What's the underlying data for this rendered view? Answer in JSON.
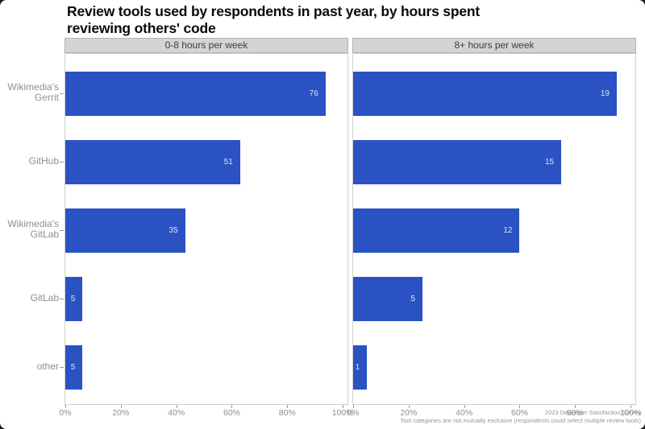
{
  "title_lines": [
    "Review tools used by respondents in past year, by hours spent",
    "reviewing others' code"
  ],
  "footnote": {
    "line1": "2023 Developer Satisfaction Survey",
    "line2": "Tool categories are not mutually exclusive (respondents could select multiple review tools)"
  },
  "colors": {
    "bar": "#2a52c3",
    "strip_bg": "#d4d4d4",
    "strip_border": "#b3b3b3",
    "panel_border": "#cfcfcf",
    "axis_text": "#8f8f8f",
    "footnote_text": "#969696"
  },
  "chart_data": {
    "type": "bar",
    "orientation": "horizontal",
    "title": "Review tools used by respondents in past year, by hours spent reviewing others' code",
    "categories": [
      "Wikimedia's Gerrit",
      "GitHub",
      "Wikimedia's GitLab",
      "GitLab",
      "other"
    ],
    "facets": [
      {
        "label": "0-8 hours per week",
        "counts": [
          76,
          51,
          35,
          5,
          5
        ],
        "pct_of_respondents": [
          93.8,
          63.0,
          43.2,
          6.2,
          6.2
        ]
      },
      {
        "label": "8+ hours per week",
        "counts": [
          19,
          15,
          12,
          5,
          1
        ],
        "pct_of_respondents": [
          95,
          75,
          60,
          25,
          5
        ]
      }
    ],
    "x_ticks": [
      {
        "value": 0,
        "label": "0%"
      },
      {
        "value": 20,
        "label": "20%"
      },
      {
        "value": 40,
        "label": "40%"
      },
      {
        "value": 60,
        "label": "60%"
      },
      {
        "value": 80,
        "label": "80%"
      },
      {
        "value": 100,
        "label": "100%"
      }
    ],
    "xlim": [
      0,
      101.7
    ],
    "value_labels": "counts displayed inside right end of bars",
    "legend": "none",
    "grid": "off"
  }
}
